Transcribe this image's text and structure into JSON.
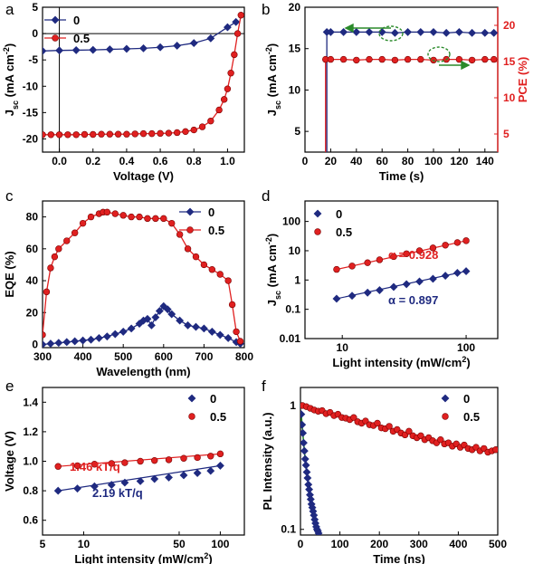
{
  "colors": {
    "blue": "#1f2a80",
    "red": "#e02020",
    "green": "#2a8a2a",
    "axis": "#000000"
  },
  "chart_data": [
    {
      "panel": "a",
      "type": "line",
      "xlabel": "Voltage (V)",
      "ylabel": "J_sc (mA cm^-2)",
      "xlim": [
        -0.1,
        1.1
      ],
      "ylim": [
        -22.5,
        5
      ],
      "xticks": [
        "0.0",
        "0.2",
        "0.4",
        "0.6",
        "0.8",
        "1.0"
      ],
      "yticks": [
        "5",
        "0",
        "-5",
        "-10",
        "-15",
        "-20"
      ],
      "legend_position": "top-left",
      "series": [
        {
          "name": "0",
          "marker": "diamond",
          "color": "blue",
          "x": [
            -0.1,
            0.0,
            0.1,
            0.2,
            0.3,
            0.4,
            0.5,
            0.6,
            0.7,
            0.8,
            0.9,
            1.0,
            1.05
          ],
          "y": [
            -3.3,
            -3.2,
            -3.15,
            -3.1,
            -3.0,
            -2.9,
            -2.8,
            -2.6,
            -2.3,
            -1.8,
            -0.9,
            1.2,
            2.2
          ]
        },
        {
          "name": "0.5",
          "marker": "circle",
          "color": "red",
          "x": [
            -0.1,
            -0.05,
            0.0,
            0.05,
            0.1,
            0.15,
            0.2,
            0.25,
            0.3,
            0.35,
            0.4,
            0.45,
            0.5,
            0.55,
            0.6,
            0.65,
            0.7,
            0.75,
            0.8,
            0.85,
            0.9,
            0.95,
            0.98,
            1.0,
            1.02,
            1.04,
            1.06,
            1.08
          ],
          "y": [
            -19.2,
            -19.2,
            -19.2,
            -19.2,
            -19.2,
            -19.15,
            -19.15,
            -19.1,
            -19.1,
            -19.1,
            -19.1,
            -19.05,
            -19.0,
            -19.0,
            -18.95,
            -18.9,
            -18.8,
            -18.6,
            -18.3,
            -17.7,
            -16.6,
            -14.5,
            -12.5,
            -10.5,
            -7.5,
            -4.0,
            0.0,
            3.5
          ]
        }
      ]
    },
    {
      "panel": "b",
      "type": "line",
      "xlabel": "Time (s)",
      "ylabel": "J_sc (mA cm^-2)",
      "ylabel_right": "PCE (%)",
      "xlim": [
        0,
        150
      ],
      "ylim": [
        2.5,
        20
      ],
      "ylim_right": [
        2.5,
        22.5
      ],
      "xticks": [
        "0",
        "20",
        "40",
        "60",
        "80",
        "100",
        "120",
        "140"
      ],
      "yticks": [
        "5",
        "10",
        "15",
        "20"
      ],
      "yticks_right": [
        "5",
        "10",
        "15",
        "20"
      ],
      "series": [
        {
          "name": "J_sc",
          "marker": "diamond",
          "color": "blue",
          "axis": "left",
          "x": [
            17,
            17,
            20,
            30,
            40,
            50,
            60,
            70,
            80,
            90,
            100,
            110,
            120,
            130,
            140,
            147
          ],
          "y": [
            2.5,
            17.0,
            17.0,
            17.0,
            17.0,
            17.0,
            17.0,
            16.9,
            17.0,
            17.0,
            17.0,
            16.9,
            17.0,
            16.9,
            16.9,
            16.9
          ]
        },
        {
          "name": "PCE",
          "marker": "circle",
          "color": "red",
          "axis": "right",
          "x": [
            16,
            16,
            20,
            30,
            40,
            50,
            60,
            70,
            80,
            90,
            100,
            110,
            120,
            130,
            140,
            147
          ],
          "y": [
            2.5,
            15.3,
            15.3,
            15.3,
            15.2,
            15.3,
            15.3,
            15.2,
            15.3,
            15.3,
            15.2,
            15.3,
            15.3,
            15.2,
            15.3,
            15.3
          ]
        }
      ]
    },
    {
      "panel": "c",
      "type": "line",
      "xlabel": "Wavelength (nm)",
      "ylabel": "EQE (%)",
      "xlim": [
        300,
        800
      ],
      "ylim": [
        -2,
        90
      ],
      "xticks": [
        "300",
        "400",
        "500",
        "600",
        "700",
        "800"
      ],
      "yticks": [
        "0",
        "20",
        "40",
        "60",
        "80"
      ],
      "legend_position": "top-right",
      "series": [
        {
          "name": "0",
          "marker": "diamond",
          "color": "blue",
          "x": [
            300,
            320,
            340,
            360,
            380,
            400,
            420,
            440,
            460,
            480,
            500,
            520,
            540,
            550,
            560,
            570,
            580,
            590,
            600,
            610,
            620,
            640,
            660,
            680,
            700,
            720,
            740,
            760,
            780,
            790
          ],
          "y": [
            0,
            0.5,
            1,
            1.5,
            2,
            2.5,
            3,
            4,
            5,
            6.5,
            8,
            10,
            13,
            15,
            16,
            12,
            17,
            21,
            24,
            22,
            19,
            15,
            12,
            11,
            10,
            8,
            6,
            4,
            1.5,
            0.5
          ]
        },
        {
          "name": "0.5",
          "marker": "circle",
          "color": "red",
          "x": [
            300,
            310,
            320,
            330,
            340,
            360,
            380,
            400,
            420,
            440,
            450,
            460,
            480,
            500,
            520,
            540,
            560,
            580,
            600,
            620,
            640,
            660,
            680,
            700,
            720,
            740,
            760,
            770,
            780,
            790
          ],
          "y": [
            6,
            33,
            48,
            55,
            60,
            65,
            70,
            76,
            80,
            82,
            83,
            83,
            82,
            81,
            80,
            80,
            79,
            79,
            79,
            76,
            69,
            60,
            55,
            50,
            47,
            44,
            40,
            25,
            8,
            2
          ]
        }
      ]
    },
    {
      "panel": "d",
      "type": "scatter",
      "xscale": "log",
      "yscale": "log",
      "xlabel": "Light intensity (mW/cm^2)",
      "ylabel": "J_sc (mA cm^-2)",
      "xlim": [
        5,
        180
      ],
      "ylim": [
        0.01,
        500
      ],
      "xticks": [
        "10",
        "100"
      ],
      "yticks": [
        "100",
        "10",
        "1",
        "0.1",
        "0.01"
      ],
      "legend_position": "top-left",
      "annotations": [
        "α = 0.928",
        "α = 0.897"
      ],
      "series": [
        {
          "name": "0",
          "marker": "diamond",
          "color": "blue",
          "x": [
            9,
            12,
            16,
            20,
            26,
            33,
            42,
            54,
            68,
            85,
            100
          ],
          "y": [
            0.23,
            0.29,
            0.37,
            0.45,
            0.58,
            0.72,
            0.89,
            1.1,
            1.4,
            1.75,
            2.0
          ]
        },
        {
          "name": "0.5",
          "marker": "circle",
          "color": "red",
          "x": [
            9,
            12,
            16,
            20,
            26,
            33,
            42,
            54,
            68,
            85,
            100
          ],
          "y": [
            2.3,
            3.0,
            3.9,
            4.9,
            6.3,
            7.9,
            10,
            12.5,
            15.5,
            19,
            22
          ]
        }
      ]
    },
    {
      "panel": "e",
      "type": "scatter",
      "xscale": "log",
      "xlabel": "Light intensity (mW/cm^2)",
      "ylabel": "Voltage (V)",
      "xlim": [
        5,
        150
      ],
      "ylim": [
        0.5,
        1.5
      ],
      "xticks": [
        "5",
        "10",
        "50",
        "100"
      ],
      "yticks": [
        "1.4",
        "1.2",
        "1.0",
        "0.8",
        "0.6"
      ],
      "legend_position": "top-right",
      "annotations": [
        "1.46 kT/q",
        "2.19 kT/q"
      ],
      "series": [
        {
          "name": "0",
          "marker": "diamond",
          "color": "blue",
          "x": [
            6.5,
            9,
            12,
            16,
            20,
            26,
            33,
            42,
            54,
            68,
            85,
            100
          ],
          "y": [
            0.8,
            0.815,
            0.83,
            0.84,
            0.855,
            0.865,
            0.88,
            0.89,
            0.905,
            0.92,
            0.935,
            0.97
          ]
        },
        {
          "name": "0.5",
          "marker": "circle",
          "color": "red",
          "x": [
            6.5,
            9,
            12,
            16,
            20,
            26,
            33,
            42,
            54,
            68,
            85,
            100
          ],
          "y": [
            0.965,
            0.97,
            0.98,
            0.985,
            0.99,
            1.0,
            1.005,
            1.01,
            1.02,
            1.025,
            1.035,
            1.05
          ]
        }
      ]
    },
    {
      "panel": "f",
      "type": "scatter",
      "yscale": "log",
      "xlabel": "Time (ns)",
      "ylabel": "PL Intensity (a.u.)",
      "xlim": [
        0,
        500
      ],
      "ylim": [
        0.09,
        1.4
      ],
      "xticks": [
        "0",
        "100",
        "200",
        "300",
        "400",
        "500"
      ],
      "yticks": [
        "1",
        "0.1"
      ],
      "legend_position": "top-right",
      "series": [
        {
          "name": "0",
          "marker": "diamond",
          "color": "blue",
          "x": [
            2,
            4,
            6,
            8,
            10,
            12,
            14,
            16,
            18,
            20,
            22,
            24,
            26,
            28,
            30,
            32,
            34,
            36,
            38,
            40,
            42,
            44,
            46
          ],
          "y": [
            0.85,
            0.7,
            0.6,
            0.5,
            0.43,
            0.37,
            0.33,
            0.29,
            0.26,
            0.23,
            0.21,
            0.19,
            0.175,
            0.16,
            0.15,
            0.14,
            0.13,
            0.12,
            0.112,
            0.105,
            0.1,
            0.097,
            0.093
          ]
        },
        {
          "name": "0.5",
          "marker": "circle",
          "color": "red",
          "x": [
            5,
            15,
            25,
            35,
            45,
            55,
            65,
            75,
            85,
            95,
            105,
            115,
            125,
            135,
            145,
            155,
            165,
            175,
            185,
            195,
            205,
            215,
            225,
            235,
            245,
            255,
            265,
            275,
            285,
            295,
            305,
            315,
            325,
            335,
            345,
            355,
            365,
            375,
            385,
            395,
            405,
            415,
            425,
            435,
            445,
            455,
            465,
            475,
            485,
            495
          ],
          "y": [
            1.0,
            0.98,
            0.95,
            0.92,
            0.9,
            0.91,
            0.86,
            0.88,
            0.83,
            0.85,
            0.8,
            0.79,
            0.77,
            0.8,
            0.74,
            0.72,
            0.75,
            0.7,
            0.69,
            0.72,
            0.66,
            0.65,
            0.68,
            0.62,
            0.64,
            0.6,
            0.58,
            0.62,
            0.57,
            0.55,
            0.57,
            0.53,
            0.55,
            0.52,
            0.5,
            0.53,
            0.49,
            0.5,
            0.47,
            0.49,
            0.46,
            0.48,
            0.45,
            0.44,
            0.46,
            0.43,
            0.45,
            0.42,
            0.43,
            0.44
          ]
        }
      ]
    }
  ]
}
